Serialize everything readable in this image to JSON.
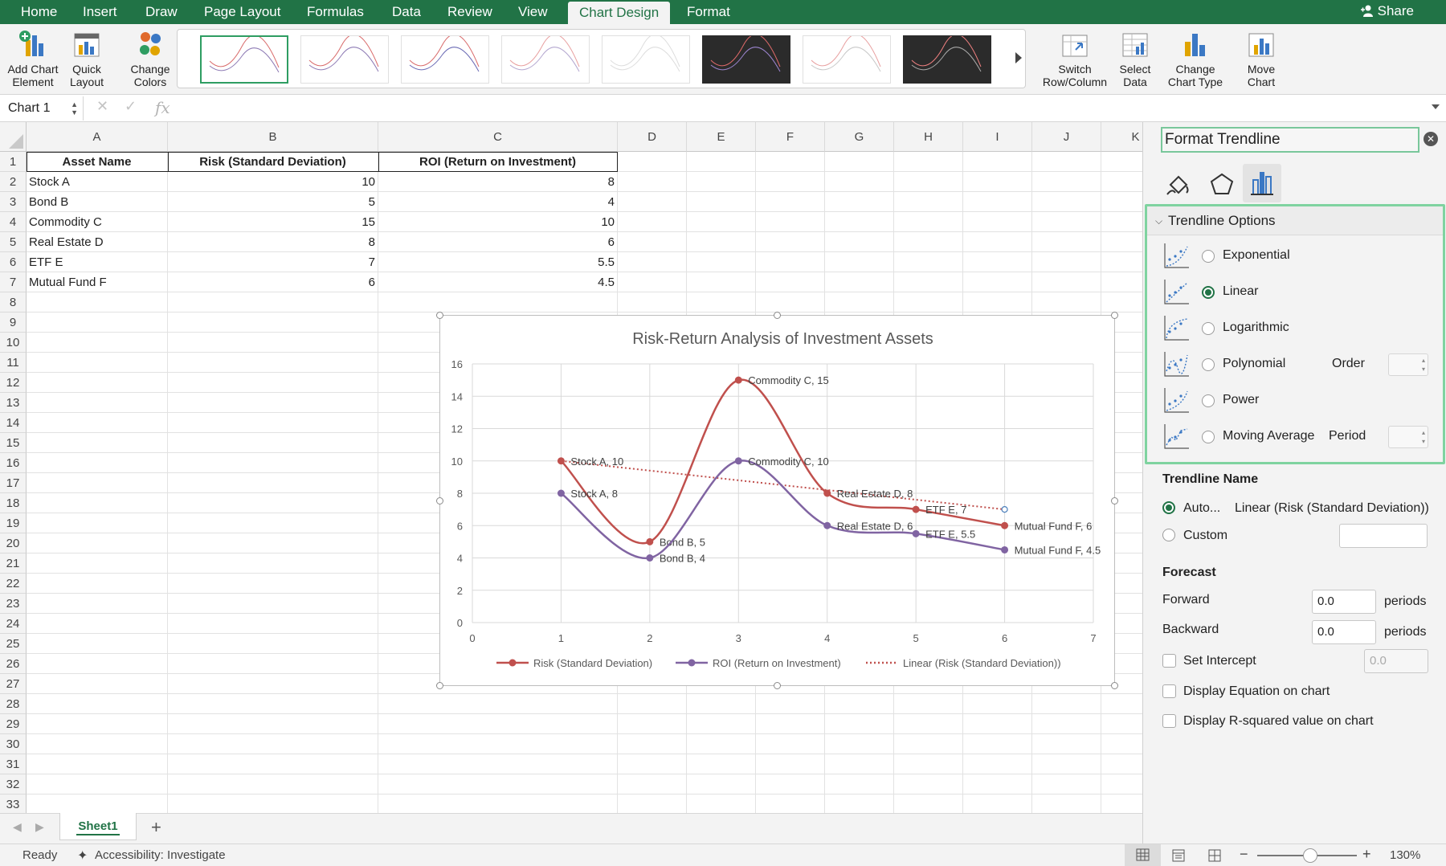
{
  "ribbon_tabs": [
    "Home",
    "Insert",
    "Draw",
    "Page Layout",
    "Formulas",
    "Data",
    "Review",
    "View",
    "Chart Design",
    "Format"
  ],
  "active_tab": "Chart Design",
  "share_label": "Share",
  "ribbon_buttons": {
    "add_chart_element": [
      "Add Chart",
      "Element"
    ],
    "quick_layout": [
      "Quick",
      "Layout"
    ],
    "change_colors": [
      "Change",
      "Colors"
    ],
    "switch_row_column": [
      "Switch",
      "Row/Column"
    ],
    "select_data": [
      "Select",
      "Data"
    ],
    "change_chart_type": [
      "Change",
      "Chart Type"
    ],
    "move_chart": [
      "Move",
      "Chart"
    ]
  },
  "formula_bar": {
    "name_box": "Chart 1",
    "fx": "fx",
    "value": ""
  },
  "columns": [
    "A",
    "B",
    "C",
    "D",
    "E",
    "F",
    "G",
    "H",
    "I",
    "J",
    "K"
  ],
  "rows": [
    "1",
    "2",
    "3",
    "4",
    "5",
    "6",
    "7",
    "8",
    "9",
    "10",
    "11",
    "12",
    "13",
    "14",
    "15",
    "16",
    "17",
    "18",
    "19",
    "20",
    "21",
    "22",
    "23",
    "24",
    "25",
    "26",
    "27",
    "28",
    "29",
    "30",
    "31",
    "32",
    "33"
  ],
  "table": {
    "headers": [
      "Asset Name",
      "Risk (Standard Deviation)",
      "ROI (Return on Investment)"
    ],
    "rows": [
      [
        "Stock A",
        "10",
        "8"
      ],
      [
        "Bond B",
        "5",
        "4"
      ],
      [
        "Commodity C",
        "15",
        "10"
      ],
      [
        "Real Estate D",
        "8",
        "6"
      ],
      [
        "ETF E",
        "7",
        "5.5"
      ],
      [
        "Mutual Fund F",
        "6",
        "4.5"
      ]
    ]
  },
  "chart_data": {
    "type": "line",
    "title": "Risk-Return Analysis of Investment Assets",
    "x": [
      1,
      2,
      3,
      4,
      5,
      6
    ],
    "xlim": [
      0,
      7
    ],
    "ylim": [
      0,
      16
    ],
    "x_ticks": [
      "0",
      "1",
      "2",
      "3",
      "4",
      "5",
      "6",
      "7"
    ],
    "y_ticks": [
      "0",
      "2",
      "4",
      "6",
      "8",
      "10",
      "12",
      "14",
      "16"
    ],
    "grid": true,
    "legend_position": "bottom",
    "series": [
      {
        "name": "Risk (Standard Deviation)",
        "color": "#c0504d",
        "values": [
          10,
          5,
          15,
          8,
          7,
          6
        ],
        "labels": [
          "Stock A, 10",
          "Bond B, 5",
          "Commodity C, 15",
          "Real Estate D, 8",
          "ETF E, 7",
          "Mutual Fund F, 6"
        ]
      },
      {
        "name": "ROI (Return on Investment)",
        "color": "#8064a2",
        "values": [
          8,
          4,
          10,
          6,
          5.5,
          4.5
        ],
        "labels": [
          "Stock A, 8",
          "Bond B, 4",
          "Commodity C, 10",
          "Real Estate D, 6",
          "ETF E, 5.5",
          "Mutual Fund F, 4.5"
        ]
      }
    ],
    "trendline": {
      "name": "Linear (Risk (Standard Deviation))",
      "color": "#c0504d",
      "style": "dotted",
      "type": "linear",
      "of_series": "Risk (Standard Deviation)"
    }
  },
  "sheet_tab": "Sheet1",
  "status": {
    "ready": "Ready",
    "accessibility": "Accessibility: Investigate",
    "zoom": "130%"
  },
  "format_pane": {
    "title": "Format Trendline",
    "section": "Trendline Options",
    "options": [
      "Exponential",
      "Linear",
      "Logarithmic",
      "Polynomial",
      "Power",
      "Moving Average"
    ],
    "selected_option": "Linear",
    "order_label": "Order",
    "period_label": "Period",
    "trendline_name_header": "Trendline Name",
    "auto_label": "Auto...",
    "auto_value": "Linear (Risk (Standard Deviation))",
    "custom_label": "Custom",
    "forecast_header": "Forecast",
    "forward_label": "Forward",
    "forward_value": "0.0",
    "backward_label": "Backward",
    "backward_value": "0.0",
    "periods_label": "periods",
    "set_intercept_label": "Set Intercept",
    "set_intercept_value": "0.0",
    "display_equation_label": "Display Equation on chart",
    "display_rsquared_label": "Display R-squared value on chart"
  }
}
